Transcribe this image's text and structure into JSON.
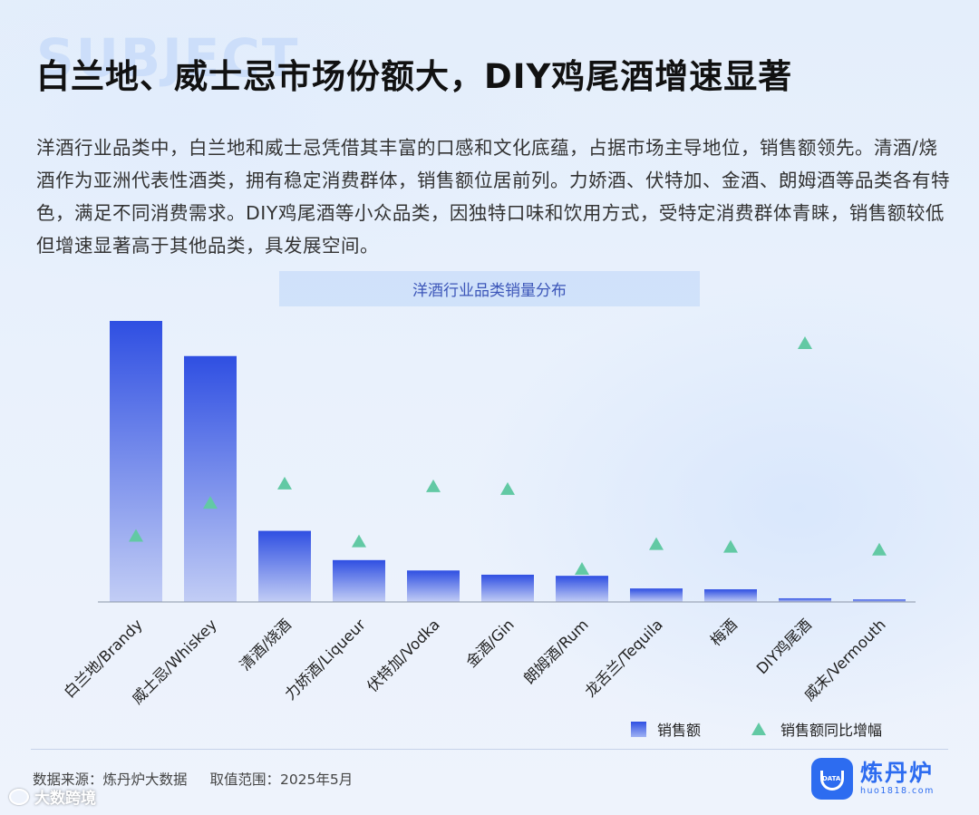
{
  "watermark": "SUBJECT",
  "title": "白兰地、威士忌市场份额大，DIY鸡尾酒增速显著",
  "description": "洋酒行业品类中，白兰地和威士忌凭借其丰富的口感和文化底蕴，占据市场主导地位，销售额领先。清酒/烧酒作为亚洲代表性酒类，拥有稳定消费群体，销售额位居前列。力娇酒、伏特加、金酒、朗姆酒等品类各有特色，满足不同消费需求。DIY鸡尾酒等小众品类，因独特口味和饮用方式，受特定消费群体青睐，销售额较低但增速显著高于其他品类，具发展空间。",
  "chart_data": {
    "type": "bar",
    "title": "洋酒行业品类销量分布",
    "categories": [
      "白兰地/Brandy",
      "威士忌/Whiskey",
      "清酒/烧酒",
      "力娇酒/Liqueur",
      "伏特加/Vodka",
      "金酒/Gin",
      "朗姆酒/Rum",
      "龙舌兰/Tequila",
      "梅酒",
      "DIY鸡尾酒",
      "威末/Vermouth"
    ],
    "series": [
      {
        "name": "销售额",
        "type": "bar",
        "values": [
          100,
          87.5,
          25.3,
          14.9,
          11.2,
          9.7,
          9.3,
          4.8,
          4.5,
          1.3,
          0.9
        ]
      },
      {
        "name": "销售额同比增幅",
        "type": "marker",
        "marker": "triangle",
        "values": [
          23,
          35,
          42,
          21,
          41,
          40,
          11,
          20,
          19,
          93,
          18
        ]
      }
    ],
    "axis_visible": false,
    "grid": false,
    "legend_position": "bottom-right",
    "colors": {
      "bar_top": "#2f4fe2",
      "bar_bottom": "#c2cdf5",
      "marker": "#62c9a4"
    }
  },
  "legend": {
    "bar_label": "销售额",
    "marker_label": "销售额同比增幅"
  },
  "footer": {
    "source": "数据来源：炼丹炉大数据",
    "range": "取值范围：2025年5月"
  },
  "corner_brand": "大数跨境",
  "logo": {
    "name": "炼丹炉",
    "url": "huo1818.com",
    "icon_text": "DATA",
    "color": "#2d6cf0"
  }
}
